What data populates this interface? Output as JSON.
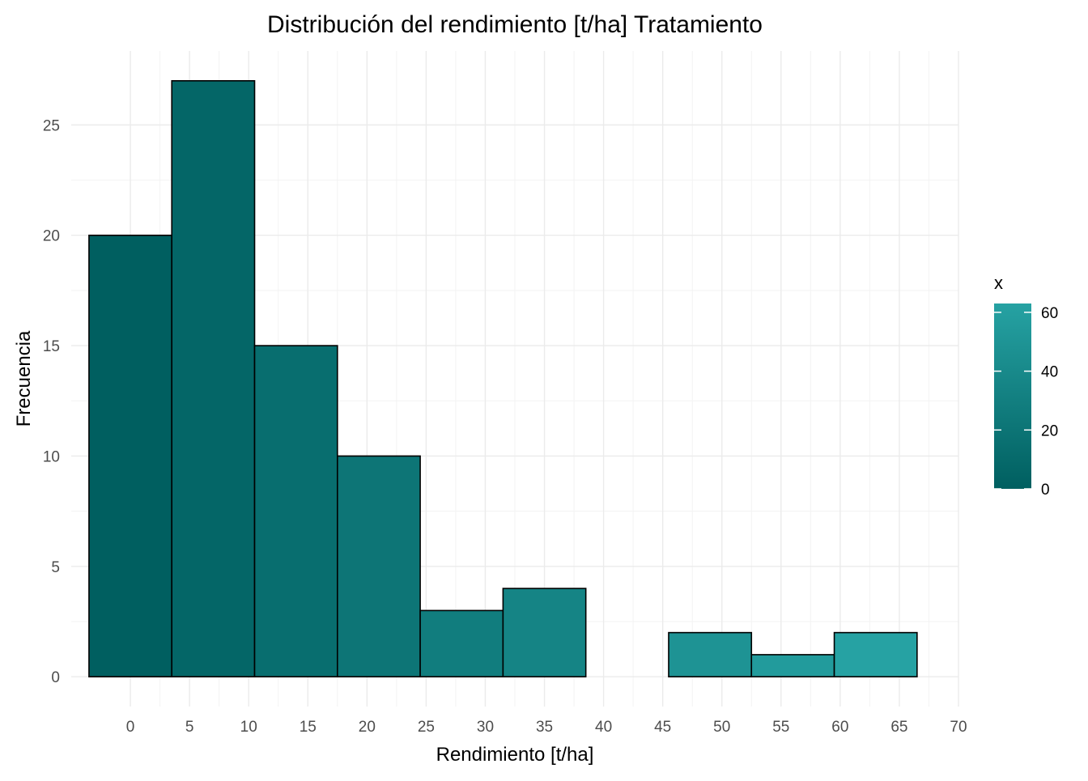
{
  "chart_data": {
    "type": "bar",
    "title": "Distribución del rendimiento [t/ha] Tratamiento",
    "xlabel": "Rendimiento [t/ha]",
    "ylabel": "Frecuencia",
    "bins": [
      {
        "x0": -3.5,
        "x1": 3.5,
        "count": 20,
        "mid": 0
      },
      {
        "x0": 3.5,
        "x1": 10.5,
        "count": 27,
        "mid": 7
      },
      {
        "x0": 10.5,
        "x1": 17.5,
        "count": 15,
        "mid": 14
      },
      {
        "x0": 17.5,
        "x1": 24.5,
        "count": 10,
        "mid": 21
      },
      {
        "x0": 24.5,
        "x1": 31.5,
        "count": 3,
        "mid": 28
      },
      {
        "x0": 31.5,
        "x1": 38.5,
        "count": 4,
        "mid": 35
      },
      {
        "x0": 38.5,
        "x1": 45.5,
        "count": 0,
        "mid": 42
      },
      {
        "x0": 45.5,
        "x1": 52.5,
        "count": 2,
        "mid": 49
      },
      {
        "x0": 52.5,
        "x1": 59.5,
        "count": 1,
        "mid": 56
      },
      {
        "x0": 59.5,
        "x1": 66.5,
        "count": 2,
        "mid": 63
      }
    ],
    "xlim": [
      -5,
      70
    ],
    "ylim": [
      -1.35,
      28.35
    ],
    "x_ticks": [
      0,
      5,
      10,
      15,
      20,
      25,
      30,
      35,
      40,
      45,
      50,
      55,
      60,
      65,
      70
    ],
    "y_ticks": [
      0,
      5,
      10,
      15,
      20,
      25
    ],
    "grid": true,
    "legend": {
      "title": "x",
      "type": "colorbar",
      "placement": "right",
      "range": [
        0,
        63
      ],
      "ticks": [
        0,
        20,
        40,
        60
      ],
      "color_low": "#005F60",
      "color_high": "#26A2A3"
    },
    "bar_outline": "#000000"
  }
}
